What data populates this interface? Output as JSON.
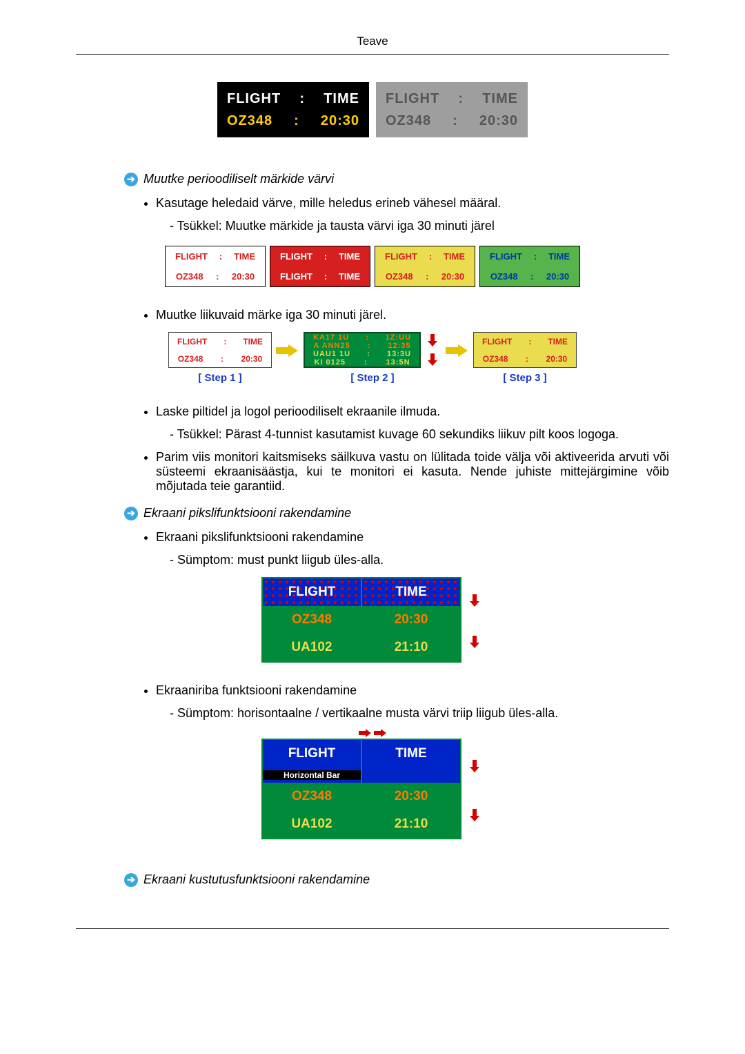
{
  "page": {
    "title": "Teave"
  },
  "topPanels": {
    "a": {
      "l1a": "FLIGHT",
      "l1b": "TIME",
      "l2a": "OZ348",
      "l2b": "20:30",
      "bg": "#000000",
      "row1_color": "#ffffff",
      "row2_color": "#ffcf00"
    },
    "b": {
      "l1a": "FLIGHT",
      "l1b": "TIME",
      "l2a": "OZ348",
      "l2b": "20:30",
      "bg": "#9e9e9e",
      "row1_color": "#555555",
      "row2_color": "#555555"
    }
  },
  "sec1": {
    "heading": "Muutke perioodiliselt märkide värvi",
    "bullet1": "Kasutage heledaid värve, mille heledus erineb vähesel määral.",
    "sub1": "- Tsükkel: Muutke märkide ja tausta värvi iga 30 minuti järel"
  },
  "fourPanels": {
    "flight_label": "FLIGHT",
    "time_label": "TIME",
    "oz_label": "OZ348",
    "oz_time": "20:30",
    "panels": [
      {
        "r1_bg": "#ffffff",
        "r1_fg": "#d62020",
        "r2_bg": "#ffffff",
        "r2_fg": "#d62020"
      },
      {
        "r1_bg": "#d62020",
        "r1_fg": "#ffffff",
        "r2_bg": "#d62020",
        "r2_fg": "#ffffff"
      },
      {
        "r1_bg": "#e9dd4f",
        "r1_fg": "#d62020",
        "r2_bg": "#e9dd4f",
        "r2_fg": "#d62020"
      },
      {
        "r1_bg": "#55b44b",
        "r1_fg": "#003b9e",
        "r2_bg": "#55b44b",
        "r2_fg": "#003b9e"
      }
    ],
    "panel2_alt_r2": "FLIGHT  :  TIME"
  },
  "sec1b": {
    "bullet2": "Muutke liikuvaid märke iga 30 minuti järel."
  },
  "steps": {
    "label_tmpl": [
      "[ Step 1 ]",
      "[ Step 2 ]",
      "[ Step 3 ]"
    ],
    "p1": {
      "r1_bg": "#ffffff",
      "r1_fg": "#d62020",
      "r2_bg": "#ffffff",
      "r2_fg": "#d62020",
      "l1a": "FLIGHT",
      "l1b": "TIME",
      "l2a": "OZ348",
      "l2b": "20:30"
    },
    "p3": {
      "r1_bg": "#e9dd4f",
      "r1_fg": "#d62020",
      "r2_bg": "#e9dd4f",
      "r2_fg": "#d62020",
      "l1a": "FLIGHT",
      "l1b": "TIME",
      "l2a": "OZ348",
      "l2b": "20:30"
    },
    "scramble": {
      "bg": "#008a3a",
      "r1_fg": "#ff7a00",
      "r1a": "KA17 1U",
      "r1b": "1Z:UU",
      "r1c": "A ANN25",
      "r1d": "12:35",
      "r2_fg": "#e9dd4f",
      "r2a": "UAU1 1U",
      "r2b": "13:3U",
      "r2c": "KI 0125",
      "r2d": "13:5N"
    }
  },
  "sec1c": {
    "bullet3": "Laske piltidel ja logol perioodiliselt ekraanile ilmuda.",
    "sub3": "- Tsükkel: Pärast 4-tunnist kasutamist kuvage 60 sekundiks liikuv pilt koos logoga.",
    "bullet4": "Parim viis monitori kaitsmiseks säilkuva vastu on lülitada toide välja või aktiveerida arvuti või süsteemi ekraanisäästja, kui te monitori ei kasuta. Nende juhiste mittejärgimine võib mõjutada teie garantiid."
  },
  "sec2": {
    "heading": "Ekraani pikslifunktsiooni rakendamine",
    "bullet1": "Ekraani pikslifunktsiooni rakendamine",
    "sub1": "- Sümptom: must punkt liigub üles-alla.",
    "table1": {
      "header_bg": "#0024c8",
      "green": "#008a3a",
      "h1": "FLIGHT",
      "h2": "TIME",
      "rows": [
        {
          "c1": "OZ348",
          "c2": "20:30",
          "fg": "#ff7a00"
        },
        {
          "c1": "UA102",
          "c2": "21:10",
          "fg": "#e9dd4f"
        }
      ]
    },
    "bullet2": "Ekraaniriba funktsiooni rakendamine",
    "sub2": "- Sümptom: horisontaalne / vertikaalne musta värvi triip liigub üles-alla.",
    "table2": {
      "header_bg": "#0024c8",
      "green": "#008a3a",
      "h1": "FLIGHT",
      "h2": "TIME",
      "hbar_label": "Horizontal Bar",
      "rows": [
        {
          "c1": "OZ348",
          "c2": "20:30",
          "fg": "#ff7a00"
        },
        {
          "c1": "UA102",
          "c2": "21:10",
          "fg": "#e9dd4f"
        }
      ]
    }
  },
  "sec3": {
    "heading": "Ekraani kustutusfunktsiooni rakendamine"
  }
}
